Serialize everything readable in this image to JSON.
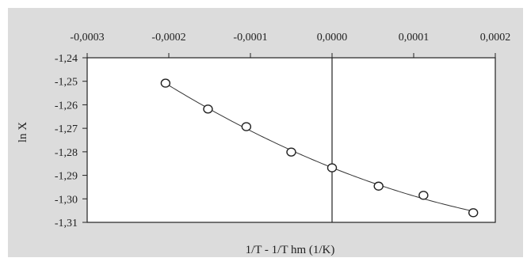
{
  "chart_data": {
    "type": "scatter",
    "title": "",
    "xlabel": "1/T - 1/T hm (1/K)",
    "ylabel": "ln X",
    "xlim": [
      -0.0003,
      0.0002
    ],
    "ylim": [
      -1.31,
      -1.24
    ],
    "x_ticks": [
      {
        "value": -0.0003,
        "label": "-0,0003"
      },
      {
        "value": -0.0002,
        "label": "-0,0002"
      },
      {
        "value": -0.0001,
        "label": "-0,0001"
      },
      {
        "value": 0.0,
        "label": "0,0000"
      },
      {
        "value": 0.0001,
        "label": "0,0001"
      },
      {
        "value": 0.0002,
        "label": "0,0002"
      }
    ],
    "y_ticks": [
      {
        "value": -1.24,
        "label": "-1,24"
      },
      {
        "value": -1.25,
        "label": "-1,25"
      },
      {
        "value": -1.26,
        "label": "-1,26"
      },
      {
        "value": -1.27,
        "label": "-1,27"
      },
      {
        "value": -1.28,
        "label": "-1,28"
      },
      {
        "value": -1.29,
        "label": "-1,29"
      },
      {
        "value": -1.3,
        "label": "-1,30"
      },
      {
        "value": -1.31,
        "label": "-1,31"
      }
    ],
    "x_axis_position": "top",
    "grid": false,
    "legend": "none",
    "series": [
      {
        "points": [
          {
            "x": -0.000204,
            "y": -1.2508
          },
          {
            "x": -0.000152,
            "y": -1.2618
          },
          {
            "x": -0.000105,
            "y": -1.2693
          },
          {
            "x": -5e-05,
            "y": -1.2801
          },
          {
            "x": 0.0,
            "y": -1.2868
          },
          {
            "x": 5.7e-05,
            "y": -1.2946
          },
          {
            "x": 0.000112,
            "y": -1.2985
          },
          {
            "x": 0.000173,
            "y": -1.3059
          }
        ]
      }
    ],
    "trendline": {
      "type": "polynomial",
      "order": 2
    },
    "colors": {
      "outer_background": "#dcdcdc",
      "plot_background": "#ffffff",
      "axis": "#222222",
      "line": "#333333",
      "marker_fill": "#ffffff",
      "marker_stroke": "#222222"
    }
  }
}
